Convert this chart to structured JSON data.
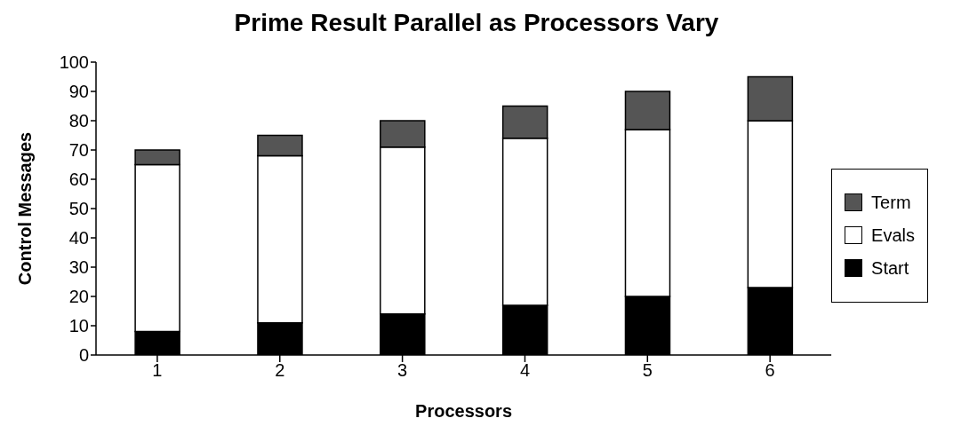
{
  "chart_data": {
    "type": "bar",
    "title": "Prime Result Parallel as Processors Vary",
    "xlabel": "Processors",
    "ylabel": "Control Messages",
    "categories": [
      "1",
      "2",
      "3",
      "4",
      "5",
      "6"
    ],
    "stacked": true,
    "legend": "right",
    "grid": false,
    "ylim": [
      0,
      100
    ],
    "yticks": [
      0,
      10,
      20,
      30,
      40,
      50,
      60,
      70,
      80,
      90,
      100
    ],
    "series": [
      {
        "name": "Start",
        "color": "#000000",
        "values": [
          8,
          11,
          14,
          17,
          20,
          23
        ]
      },
      {
        "name": "Evals",
        "color": "#ffffff",
        "values": [
          57,
          57,
          57,
          57,
          57,
          57
        ]
      },
      {
        "name": "Term",
        "color": "#555555",
        "values": [
          5,
          7,
          9,
          11,
          13,
          15
        ]
      }
    ]
  }
}
